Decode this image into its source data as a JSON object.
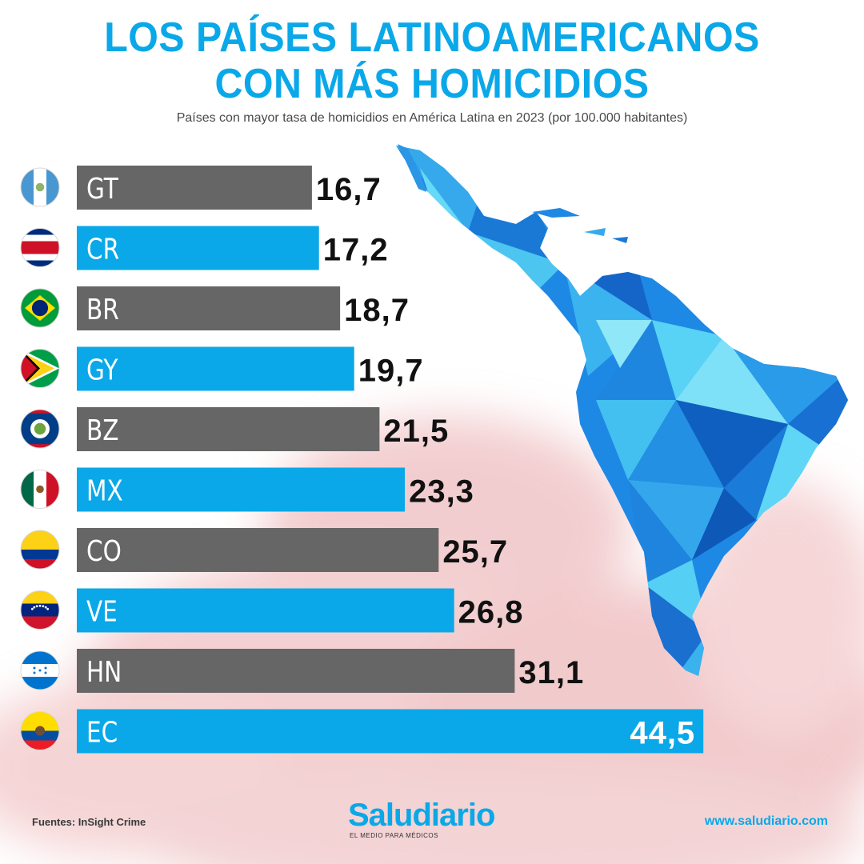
{
  "header": {
    "title_line1": "LOS PAÍSES LATINOAMERICANOS",
    "title_line2": "CON MÁS HOMICIDIOS",
    "subtitle": "Países con mayor tasa de homicidios en América Latina en 2023 (por 100.000 habitantes)"
  },
  "colors": {
    "blue": "#0aa8e8",
    "gray": "#666666",
    "background_tint": "#e8a3a6"
  },
  "chart_data": {
    "type": "bar",
    "orientation": "horizontal",
    "title": "LOS PAÍSES LATINOAMERICANOS CON MÁS HOMICIDIOS",
    "subtitle": "Países con mayor tasa de homicidios en América Latina en 2023 (por 100.000 habitantes)",
    "categories": [
      "GT",
      "CR",
      "BR",
      "GY",
      "BZ",
      "MX",
      "CO",
      "VE",
      "HN",
      "EC"
    ],
    "values": [
      16.7,
      17.2,
      18.7,
      19.7,
      21.5,
      23.3,
      25.7,
      26.8,
      31.1,
      44.5
    ],
    "value_labels": [
      "16,7",
      "17,2",
      "18,7",
      "19,7",
      "21,5",
      "23,3",
      "25,7",
      "26,8",
      "31,1",
      "44,5"
    ],
    "flags": [
      "guatemala-flag",
      "costa-rica-flag",
      "brazil-flag",
      "guyana-flag",
      "belize-flag",
      "mexico-flag",
      "colombia-flag",
      "venezuela-flag",
      "honduras-flag",
      "ecuador-flag"
    ],
    "bar_colors": [
      "#666666",
      "#0aa8e8",
      "#666666",
      "#0aa8e8",
      "#666666",
      "#0aa8e8",
      "#666666",
      "#0aa8e8",
      "#666666",
      "#0aa8e8"
    ],
    "grid": false,
    "xlabel": "",
    "ylabel": ""
  },
  "footer": {
    "source": "Fuentes: InSight Crime",
    "brand_name": "Saludiario",
    "brand_tagline": "EL MEDIO PARA MÉDICOS",
    "website": "www.saludiario.com"
  }
}
